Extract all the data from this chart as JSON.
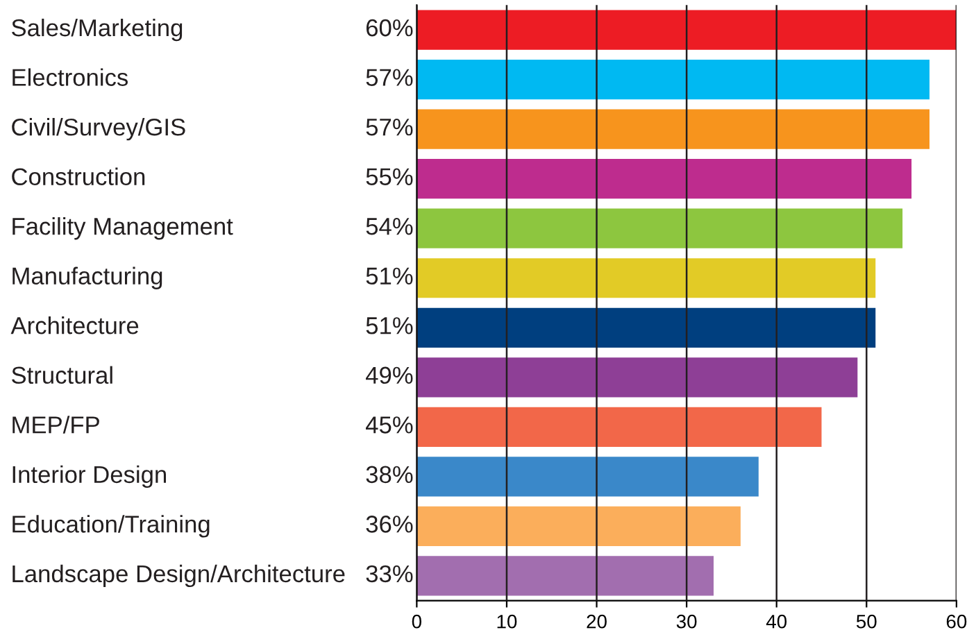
{
  "chart_data": {
    "type": "bar",
    "orientation": "horizontal",
    "categories": [
      "Sales/Marketing",
      "Electronics",
      "Civil/Survey/GIS",
      "Construction",
      "Facility Management",
      "Manufacturing",
      "Architecture",
      "Structural",
      "MEP/FP",
      "Interior Design",
      "Education/Training",
      "Landscape Design/Architecture"
    ],
    "values": [
      60,
      57,
      57,
      55,
      54,
      51,
      51,
      49,
      45,
      38,
      36,
      33
    ],
    "value_labels": [
      "60%",
      "57%",
      "57%",
      "55%",
      "54%",
      "51%",
      "51%",
      "49%",
      "45%",
      "38%",
      "36%",
      "33%"
    ],
    "colors": [
      "#ed1c24",
      "#00b9f2",
      "#f7941d",
      "#be2c8e",
      "#8dc63f",
      "#e2cb26",
      "#003f7f",
      "#8e3f96",
      "#f26749",
      "#3a88c9",
      "#fbae5b",
      "#a26eaf"
    ],
    "xlim": [
      0,
      60
    ],
    "xticks": [
      0,
      10,
      20,
      30,
      40,
      50,
      60
    ],
    "grid": "x"
  }
}
